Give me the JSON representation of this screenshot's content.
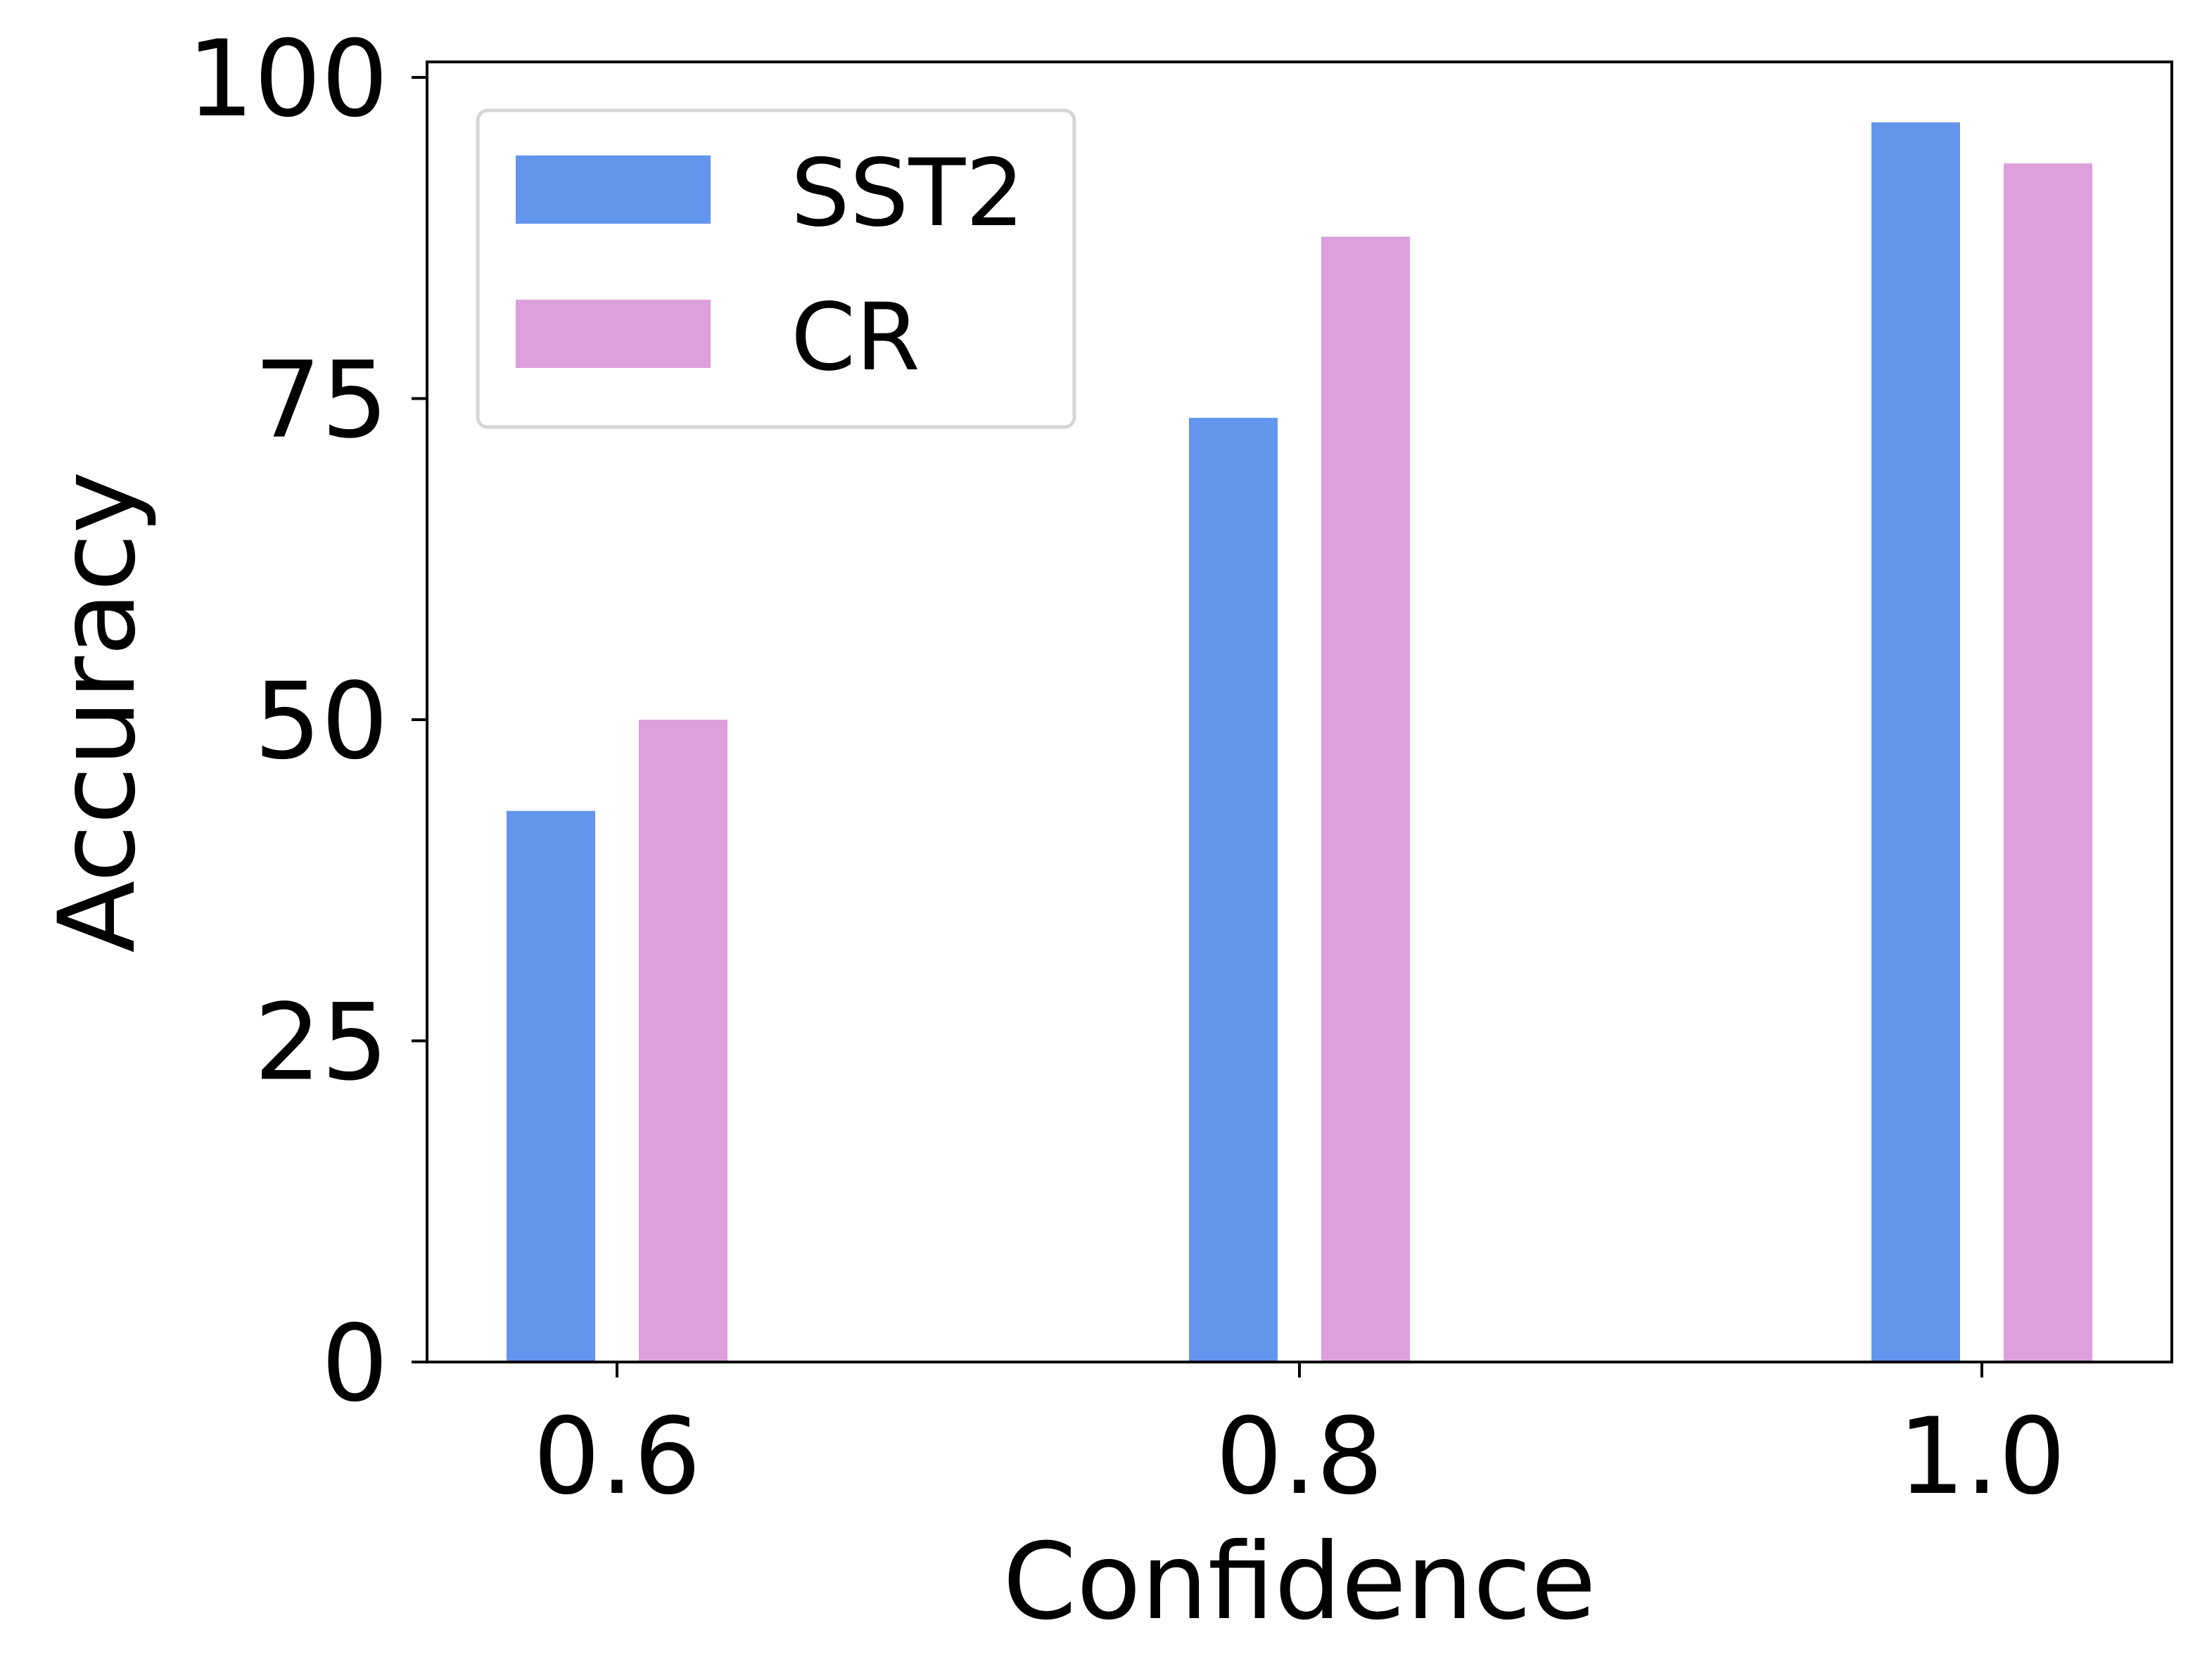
{
  "chart_data": {
    "type": "bar",
    "title": "",
    "xlabel": "Confidence",
    "ylabel": "Accuracy",
    "categories": [
      "0.6",
      "0.8",
      "1.0"
    ],
    "series": [
      {
        "name": "SST2",
        "color": "#6495ED",
        "values": [
          42.9,
          73.5,
          96.5
        ]
      },
      {
        "name": "CR",
        "color": "#DDA0DD",
        "values": [
          50.0,
          87.6,
          93.3
        ]
      }
    ],
    "ylim": [
      0,
      100
    ],
    "yticks": [
      "0",
      "25",
      "50",
      "75",
      "100"
    ],
    "grid": false,
    "legend": "top-left"
  }
}
